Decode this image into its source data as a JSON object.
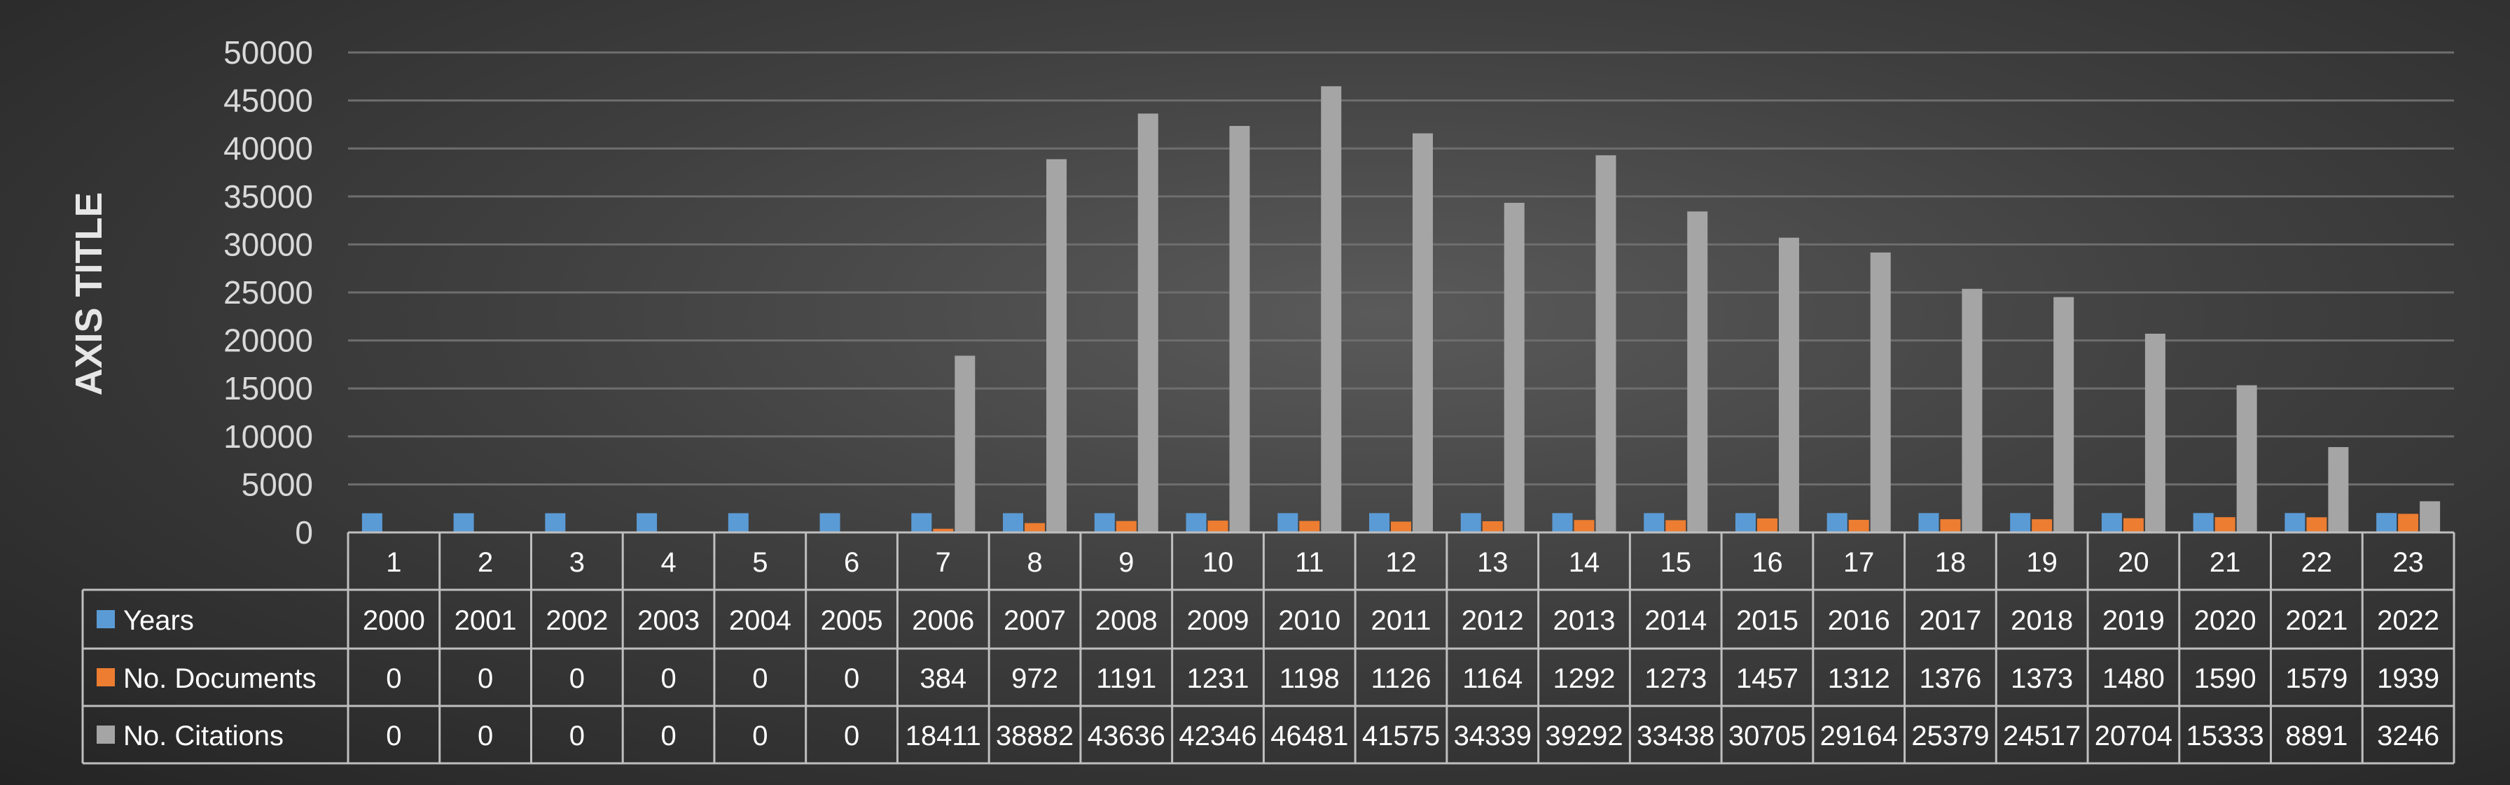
{
  "chart_data": {
    "type": "bar",
    "ylabel": "AXIS TITLE",
    "ylim": [
      0,
      50000
    ],
    "y_ticks": [
      0,
      5000,
      10000,
      15000,
      20000,
      25000,
      30000,
      35000,
      40000,
      45000,
      50000
    ],
    "grid": true,
    "legend": "data-table",
    "categories": [
      "1",
      "2",
      "3",
      "4",
      "5",
      "6",
      "7",
      "8",
      "9",
      "10",
      "11",
      "12",
      "13",
      "14",
      "15",
      "16",
      "17",
      "18",
      "19",
      "20",
      "21",
      "22",
      "23"
    ],
    "series": [
      {
        "name": "Years",
        "color": "#5b9bd5",
        "values": [
          2000,
          2001,
          2002,
          2003,
          2004,
          2005,
          2006,
          2007,
          2008,
          2009,
          2010,
          2011,
          2012,
          2013,
          2014,
          2015,
          2016,
          2017,
          2018,
          2019,
          2020,
          2021,
          2022
        ]
      },
      {
        "name": "No. Documents",
        "color": "#ed7d31",
        "values": [
          0,
          0,
          0,
          0,
          0,
          0,
          384,
          972,
          1191,
          1231,
          1198,
          1126,
          1164,
          1292,
          1273,
          1457,
          1312,
          1376,
          1373,
          1480,
          1590,
          1579,
          1939
        ]
      },
      {
        "name": "No. Citations",
        "color": "#a5a5a5",
        "values": [
          0,
          0,
          0,
          0,
          0,
          0,
          18411,
          38882,
          43636,
          42346,
          46481,
          41575,
          34339,
          39292,
          33438,
          30705,
          29164,
          25379,
          24517,
          20704,
          15333,
          8891,
          3246
        ]
      }
    ]
  }
}
